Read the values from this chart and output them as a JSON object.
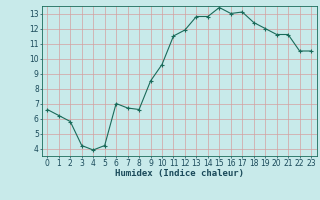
{
  "x": [
    0,
    1,
    2,
    3,
    4,
    5,
    6,
    7,
    8,
    9,
    10,
    11,
    12,
    13,
    14,
    15,
    16,
    17,
    18,
    19,
    20,
    21,
    22,
    23
  ],
  "y": [
    6.6,
    6.2,
    5.8,
    4.2,
    3.9,
    4.2,
    7.0,
    6.7,
    6.6,
    8.5,
    9.6,
    11.5,
    11.9,
    12.8,
    12.8,
    13.4,
    13.0,
    13.1,
    12.4,
    12.0,
    11.6,
    11.6,
    10.5,
    10.5
  ],
  "xlabel": "Humidex (Indice chaleur)",
  "xlim": [
    -0.5,
    23.5
  ],
  "ylim": [
    3.5,
    13.5
  ],
  "yticks": [
    4,
    5,
    6,
    7,
    8,
    9,
    10,
    11,
    12,
    13
  ],
  "xticks": [
    0,
    1,
    2,
    3,
    4,
    5,
    6,
    7,
    8,
    9,
    10,
    11,
    12,
    13,
    14,
    15,
    16,
    17,
    18,
    19,
    20,
    21,
    22,
    23
  ],
  "line_color": "#1a6b5a",
  "marker_color": "#1a6b5a",
  "bg_color": "#c8eaea",
  "grid_color": "#d4a0a0",
  "axis_color": "#1a6b5a",
  "label_color": "#1a4a5a",
  "xlabel_fontsize": 6.5,
  "tick_fontsize": 5.5
}
